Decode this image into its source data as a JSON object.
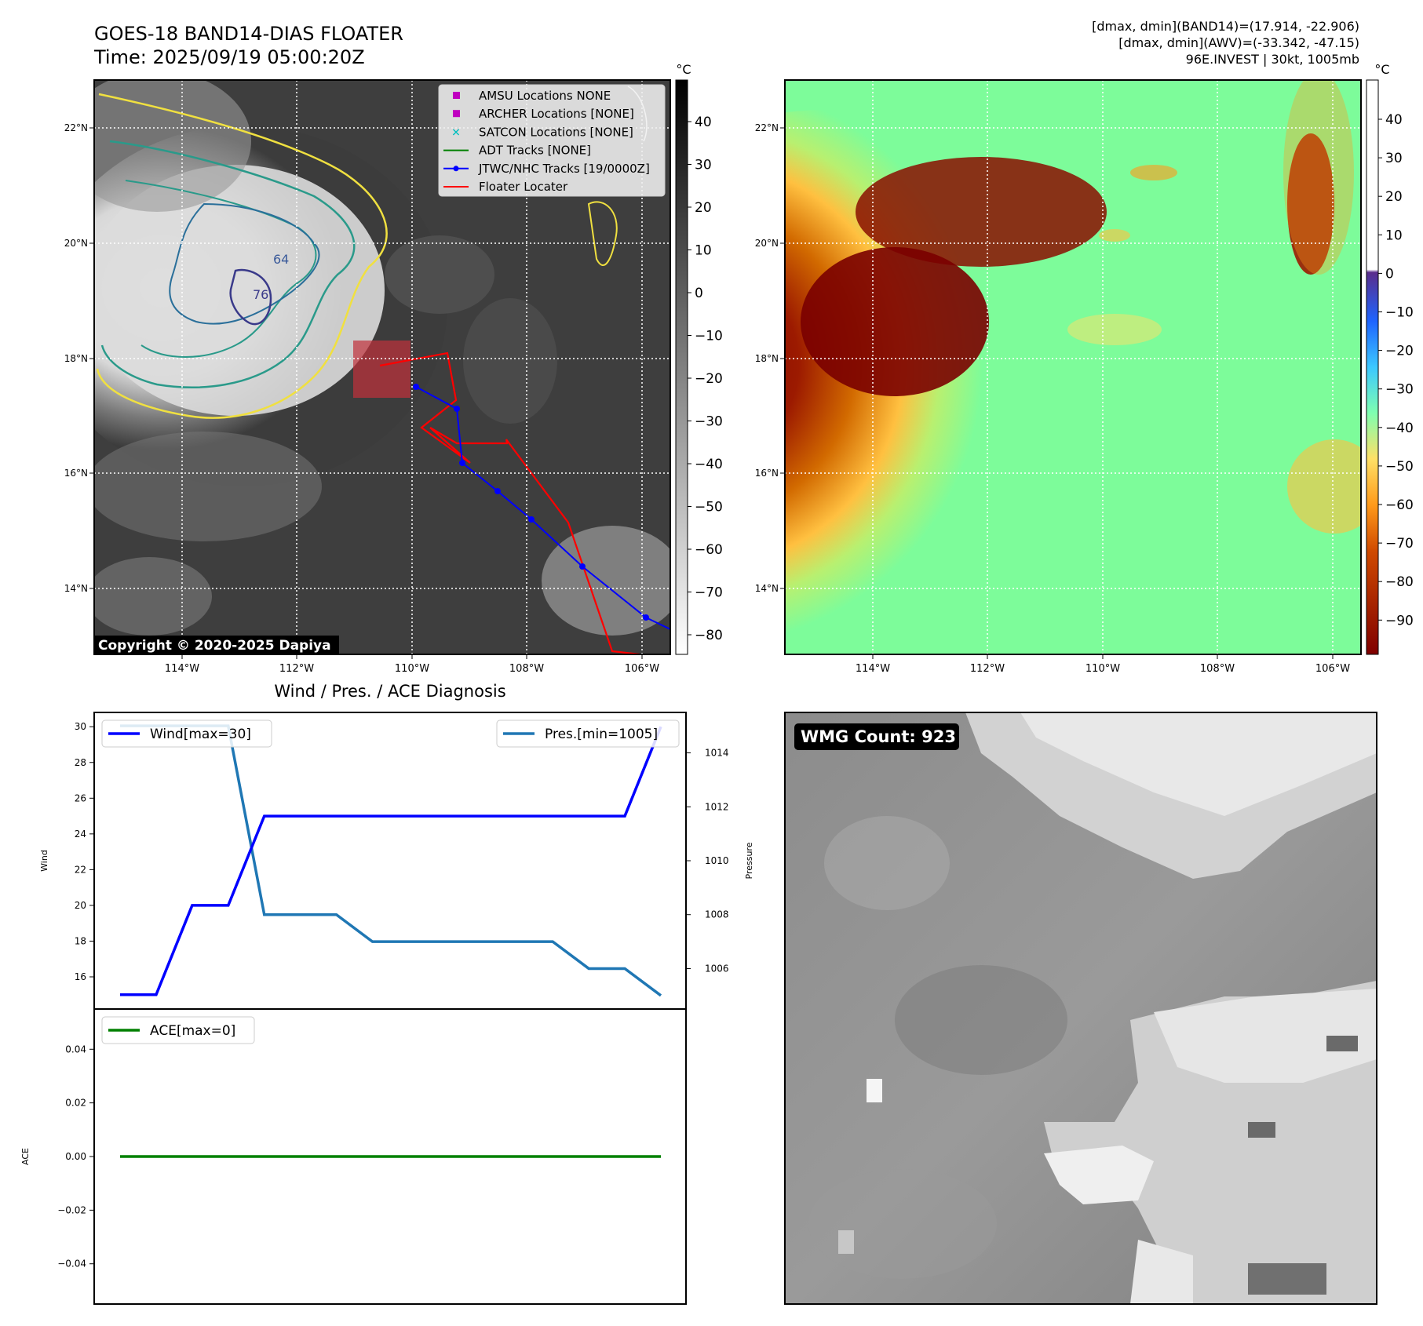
{
  "header": {
    "title_line1": "GOES-18 BAND14-DIAS FLOATER",
    "title_line2": "Time: 2025/09/19 05:00:20Z",
    "info_line1": "[dmax, dmin](BAND14)=(17.914, -22.906)",
    "info_line2": "[dmax, dmin](AWV)=(-33.342, -47.15)",
    "info_line3": "96E.INVEST | 30kt, 1005mb"
  },
  "map_axes": {
    "lon_ticks": [
      "114°W",
      "112°W",
      "110°W",
      "108°W",
      "106°W"
    ],
    "lat_ticks": [
      "22°N",
      "20°N",
      "18°N",
      "16°N",
      "14°N"
    ]
  },
  "ir_panel": {
    "colorbar_unit": "°C",
    "colorbar_ticks": [
      "40",
      "30",
      "20",
      "10",
      "0",
      "−10",
      "−20",
      "−30",
      "−40",
      "−50",
      "−60",
      "−70",
      "−80"
    ],
    "contour_labels": [
      "64",
      "76"
    ],
    "copyright": "Copyright © 2020-2025 Dapiya",
    "legend": [
      {
        "label": "AMSU Locations NONE",
        "color": "#bf00bf",
        "icon": "square-marker-icon"
      },
      {
        "label": "ARCHER Locations [NONE]",
        "color": "#bf00bf",
        "icon": "square-marker-icon"
      },
      {
        "label": "SATCON Locations [NONE]",
        "color": "#00bfbf",
        "icon": "x-marker-icon"
      },
      {
        "label": "ADT Tracks [NONE]",
        "color": "#008000",
        "icon": "line-icon"
      },
      {
        "label": "JTWC/NHC Tracks [19/0000Z]",
        "color": "#0000ff",
        "icon": "line-dot-icon"
      },
      {
        "label": "Floater Locater",
        "color": "#ff0000",
        "icon": "line-icon"
      }
    ]
  },
  "awv_panel": {
    "colorbar_unit": "°C",
    "colorbar_ticks": [
      "40",
      "30",
      "20",
      "10",
      "0",
      "−10",
      "−20",
      "−30",
      "−40",
      "−50",
      "−60",
      "−70",
      "−80",
      "−90"
    ]
  },
  "wmg_panel": {
    "count_label": "WMG Count: 923"
  },
  "chart_data": [
    {
      "type": "line",
      "title": "Wind / Pres. / ACE Diagnosis",
      "x": [
        0,
        1,
        2,
        3,
        4,
        5,
        6,
        7,
        8,
        9,
        10,
        11,
        12,
        13,
        14,
        15
      ],
      "series": [
        {
          "name": "Wind[max=30]",
          "axis": "left",
          "color": "#0000ff",
          "values": [
            15,
            15,
            20,
            20,
            25,
            25,
            25,
            25,
            25,
            25,
            25,
            25,
            25,
            25,
            25,
            30
          ]
        },
        {
          "name": "Pres.[min=1005]",
          "axis": "right",
          "color": "#1f77b4",
          "values": [
            1015,
            1015,
            1015,
            1015,
            1008,
            1008,
            1008,
            1007,
            1007,
            1007,
            1007,
            1007,
            1007,
            1006,
            1006,
            1005
          ]
        }
      ],
      "ylabel": "Wind",
      "y2label": "Pressure",
      "ylim": [
        14.2,
        30.8
      ],
      "y2lim": [
        1004.5,
        1015.5
      ],
      "yticks": [
        "16",
        "18",
        "20",
        "22",
        "24",
        "26",
        "28",
        "30"
      ],
      "y2ticks": [
        "1006",
        "1008",
        "1010",
        "1012",
        "1014"
      ],
      "legend_placement": "top-left / top-right"
    },
    {
      "type": "line",
      "x": [
        0,
        1,
        2,
        3,
        4,
        5,
        6,
        7,
        8,
        9,
        10,
        11,
        12,
        13,
        14,
        15
      ],
      "series": [
        {
          "name": "ACE[max=0]",
          "color": "#008000",
          "values": [
            0,
            0,
            0,
            0,
            0,
            0,
            0,
            0,
            0,
            0,
            0,
            0,
            0,
            0,
            0,
            0
          ]
        }
      ],
      "ylabel": "ACE",
      "ylim": [
        -0.055,
        0.055
      ],
      "yticks": [
        "0.04",
        "0.02",
        "0.00",
        "−0.02",
        "−0.04"
      ],
      "legend_placement": "top-left"
    }
  ]
}
